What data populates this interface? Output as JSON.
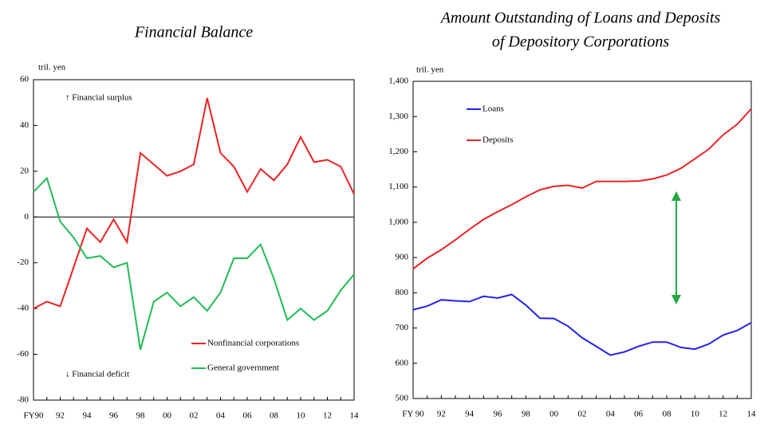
{
  "chart_data": [
    {
      "type": "line",
      "title": [
        "Financial Balance"
      ],
      "y_label": "tril. yen",
      "annotations": [
        "↑ Financial surplus",
        "↓ Financial deficit"
      ],
      "categories": [
        "FY90",
        null,
        "92",
        null,
        "94",
        null,
        "96",
        null,
        "98",
        null,
        "00",
        null,
        "02",
        null,
        "04",
        null,
        "06",
        null,
        "08",
        null,
        "10",
        null,
        "12",
        null,
        "14"
      ],
      "series": [
        {
          "name": "Nonfinancial corporations",
          "color": "#ee2222",
          "values": [
            -40,
            -37,
            -39,
            -22,
            -5,
            -11,
            -1,
            -11,
            28,
            23,
            18,
            20,
            23,
            52,
            28,
            22,
            11,
            21,
            16,
            23,
            35,
            24,
            25,
            22,
            10
          ]
        },
        {
          "name": "General government",
          "color": "#22bb55",
          "values": [
            11,
            17,
            -2,
            -9,
            -18,
            -17,
            -22,
            -20,
            -58,
            -37,
            -33,
            -39,
            -35,
            -41,
            -33,
            -18,
            -18,
            -12,
            -27,
            -45,
            -40,
            -45,
            -41,
            -32,
            -25
          ]
        }
      ],
      "ylim": [
        -80,
        60
      ],
      "yticks": [
        -80,
        -60,
        -40,
        -20,
        0,
        20,
        40,
        60
      ]
    },
    {
      "type": "line",
      "title": [
        "Amount Outstanding of Loans and Deposits",
        "of Depository Corporations"
      ],
      "y_label": "tril. yen",
      "categories": [
        "FY 90",
        null,
        "92",
        null,
        "94",
        null,
        "96",
        null,
        "98",
        null,
        "00",
        null,
        "02",
        null,
        "04",
        null,
        "06",
        null,
        "08",
        null,
        "10",
        null,
        "12",
        null,
        "14"
      ],
      "series": [
        {
          "name": "Loans",
          "color": "#2222ee",
          "values": [
            752,
            762,
            780,
            777,
            775,
            790,
            785,
            795,
            765,
            728,
            727,
            705,
            672,
            648,
            623,
            632,
            648,
            660,
            660,
            645,
            640,
            655,
            680,
            693,
            715
          ]
        },
        {
          "name": "Deposits",
          "color": "#ee2222",
          "values": [
            868,
            898,
            922,
            950,
            980,
            1008,
            1030,
            1050,
            1072,
            1092,
            1102,
            1105,
            1097,
            1116,
            1116,
            1116,
            1117,
            1123,
            1134,
            1153,
            1180,
            1208,
            1248,
            1278,
            1322
          ]
        }
      ],
      "ylim": [
        500,
        1400
      ],
      "yticks": [
        500,
        600,
        700,
        800,
        900,
        {
          "value": 1000,
          "label": "1,000"
        },
        {
          "value": 1100,
          "label": "1,100"
        },
        {
          "value": 1200,
          "label": "1,200"
        },
        {
          "value": 1300,
          "label": "1,300"
        },
        {
          "value": 1400,
          "label": "1,400"
        }
      ]
    }
  ]
}
